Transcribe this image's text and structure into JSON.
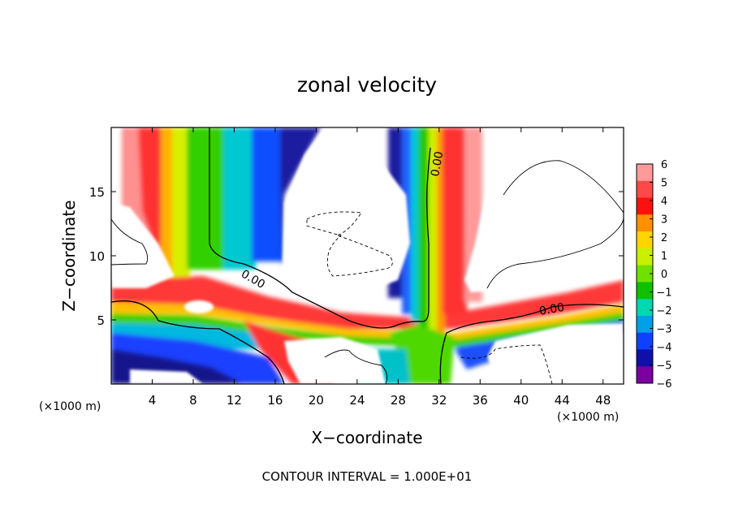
{
  "chart_data": {
    "type": "heatmap",
    "title": "zonal velocity",
    "xlabel": "X−coordinate",
    "ylabel": "Z−coordinate",
    "x_unit": "(×1000 m)",
    "y_unit": "(×1000 m)",
    "xlim": [
      0,
      50
    ],
    "ylim": [
      0,
      20
    ],
    "x_ticks": [
      4,
      8,
      12,
      16,
      20,
      24,
      28,
      32,
      36,
      40,
      44,
      48
    ],
    "y_ticks": [
      5,
      10,
      15
    ],
    "colorbar": {
      "ticks": [
        6,
        5,
        4,
        3,
        2,
        1,
        0,
        -1,
        -2,
        -3,
        -4,
        -5,
        -6
      ],
      "range": [
        -6,
        6
      ],
      "colors": [
        "#ff9a9a",
        "#ff4848",
        "#ff1010",
        "#ff9000",
        "#ffd400",
        "#c8f000",
        "#70e000",
        "#10c000",
        "#00d8b0",
        "#00a0e8",
        "#1040ff",
        "#1010a8",
        "#7a00a0"
      ]
    },
    "contour_labels": [
      "0.00",
      "0.00",
      "0.00"
    ],
    "contour_interval": "CONTOUR INTERVAL = 1.000E+01",
    "grid": false
  }
}
